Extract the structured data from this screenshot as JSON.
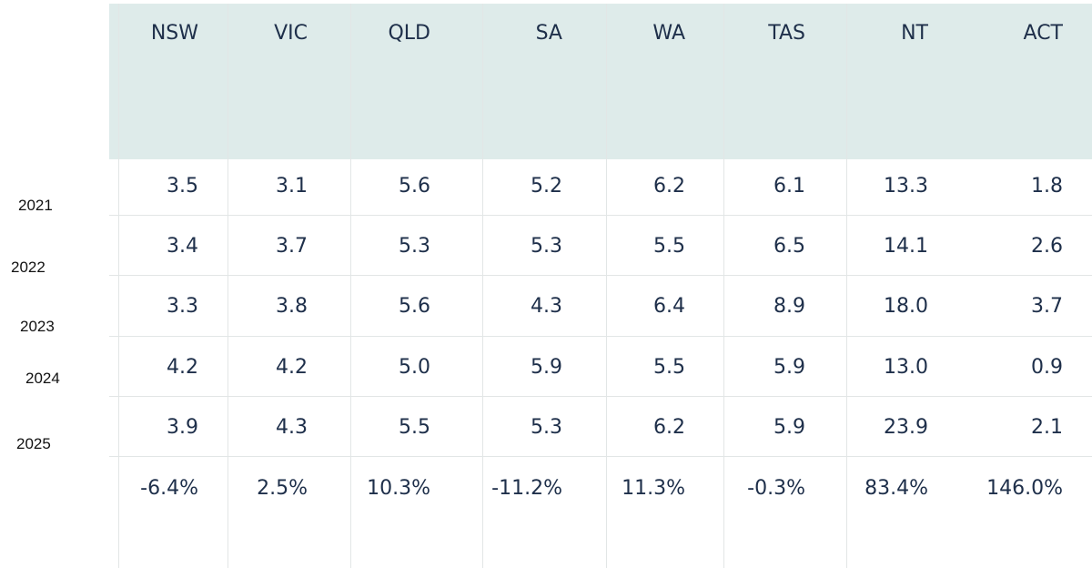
{
  "chart_data": {
    "type": "table",
    "columns": [
      "NSW",
      "VIC",
      "QLD",
      "SA",
      "WA",
      "TAS",
      "NT",
      "ACT"
    ],
    "rows": [
      {
        "label": "2021",
        "values": [
          "3.5",
          "3.1",
          "5.6",
          "5.2",
          "6.2",
          "6.1",
          "13.3",
          "1.8"
        ]
      },
      {
        "label": "2022",
        "values": [
          "3.4",
          "3.7",
          "5.3",
          "5.3",
          "5.5",
          "6.5",
          "14.1",
          "2.6"
        ]
      },
      {
        "label": "2023",
        "values": [
          "3.3",
          "3.8",
          "5.6",
          "4.3",
          "6.4",
          "8.9",
          "18.0",
          "3.7"
        ]
      },
      {
        "label": "2024",
        "values": [
          "4.2",
          "4.2",
          "5.0",
          "5.9",
          "5.5",
          "5.9",
          "13.0",
          "0.9"
        ]
      },
      {
        "label": "2025",
        "values": [
          "3.9",
          "4.3",
          "5.5",
          "5.3",
          "6.2",
          "5.9",
          "23.9",
          "2.1"
        ]
      },
      {
        "label": "",
        "values": [
          "-6.4%",
          "2.5%",
          "10.3%",
          "-11.2%",
          "11.3%",
          "-0.3%",
          "83.4%",
          "146.0%"
        ]
      }
    ]
  },
  "colors": {
    "header_bg": "#deebea",
    "text": "#1e2f4a",
    "label_text": "#111111",
    "grid": "#e2e6e6",
    "background": "#ffffff"
  }
}
